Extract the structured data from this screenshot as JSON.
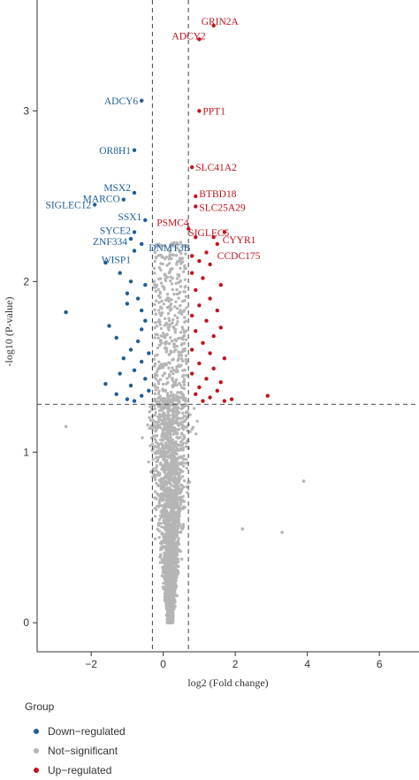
{
  "chart_data": {
    "type": "scatter",
    "title": "",
    "xlabel": "log2 (Fold change)",
    "ylabel": "-log10 (P-value)",
    "xlim": [
      -3.5,
      7.1
    ],
    "ylim": [
      -0.17,
      3.65
    ],
    "xticks": [
      -2,
      0,
      2,
      4,
      6
    ],
    "yticks": [
      0,
      1,
      2,
      3
    ],
    "thresholds": {
      "x_left": -0.3,
      "x_right": 0.7,
      "y": 1.28
    },
    "grid": false,
    "legend_position": "bottom-left",
    "colors": {
      "down": "#1f5d96",
      "ns": "#b5b5b5",
      "up": "#c0141e"
    },
    "series": [
      {
        "name": "Down−regulated",
        "key": "down",
        "points": [
          [
            -0.6,
            3.06
          ],
          [
            -0.8,
            2.77
          ],
          [
            -0.8,
            2.52
          ],
          [
            -1.1,
            2.48
          ],
          [
            -1.9,
            2.45
          ],
          [
            -0.5,
            2.36
          ],
          [
            -0.8,
            2.29
          ],
          [
            -0.9,
            2.25
          ],
          [
            -0.6,
            2.22
          ],
          [
            -0.8,
            2.18
          ],
          [
            -1.6,
            2.11
          ],
          [
            -1.2,
            2.05
          ],
          [
            -0.9,
            2.0
          ],
          [
            -0.5,
            1.98
          ],
          [
            -1.0,
            1.93
          ],
          [
            -0.7,
            1.9
          ],
          [
            -1.0,
            1.87
          ],
          [
            -0.6,
            1.83
          ],
          [
            -2.7,
            1.82
          ],
          [
            -1.5,
            1.74
          ],
          [
            -0.5,
            1.77
          ],
          [
            -0.6,
            1.72
          ],
          [
            -1.3,
            1.67
          ],
          [
            -0.7,
            1.65
          ],
          [
            -0.9,
            1.6
          ],
          [
            -0.4,
            1.58
          ],
          [
            -1.1,
            1.55
          ],
          [
            -0.6,
            1.53
          ],
          [
            -0.8,
            1.48
          ],
          [
            -1.2,
            1.46
          ],
          [
            -0.5,
            1.43
          ],
          [
            -1.6,
            1.4
          ],
          [
            -0.9,
            1.39
          ],
          [
            -0.4,
            1.36
          ],
          [
            -1.3,
            1.34
          ],
          [
            -0.6,
            1.33
          ],
          [
            -1.0,
            1.31
          ],
          [
            -0.8,
            1.3
          ]
        ]
      },
      {
        "name": "Not−significant",
        "key": "ns"
      },
      {
        "name": "Up−regulated",
        "key": "up",
        "points": [
          [
            1.4,
            3.5
          ],
          [
            1.0,
            3.42
          ],
          [
            1.0,
            3.0
          ],
          [
            0.8,
            2.67
          ],
          [
            0.9,
            2.5
          ],
          [
            0.9,
            2.44
          ],
          [
            0.7,
            2.31
          ],
          [
            1.7,
            2.29
          ],
          [
            0.9,
            2.26
          ],
          [
            1.4,
            2.26
          ],
          [
            1.5,
            2.22
          ],
          [
            1.2,
            2.17
          ],
          [
            0.8,
            2.15
          ],
          [
            1.0,
            2.12
          ],
          [
            1.3,
            2.1
          ],
          [
            0.8,
            2.05
          ],
          [
            1.1,
            2.02
          ],
          [
            1.6,
            1.98
          ],
          [
            0.9,
            1.95
          ],
          [
            1.3,
            1.9
          ],
          [
            1.0,
            1.86
          ],
          [
            1.5,
            1.83
          ],
          [
            0.8,
            1.8
          ],
          [
            1.2,
            1.77
          ],
          [
            1.6,
            1.73
          ],
          [
            0.9,
            1.71
          ],
          [
            1.4,
            1.68
          ],
          [
            1.1,
            1.64
          ],
          [
            0.8,
            1.6
          ],
          [
            1.3,
            1.58
          ],
          [
            1.7,
            1.55
          ],
          [
            1.0,
            1.52
          ],
          [
            1.4,
            1.49
          ],
          [
            0.8,
            1.46
          ],
          [
            1.2,
            1.43
          ],
          [
            1.6,
            1.41
          ],
          [
            1.0,
            1.38
          ],
          [
            1.5,
            1.36
          ],
          [
            0.9,
            1.34
          ],
          [
            2.9,
            1.33
          ],
          [
            1.3,
            1.32
          ],
          [
            1.9,
            1.31
          ],
          [
            1.1,
            1.3
          ],
          [
            1.7,
            1.3
          ]
        ]
      }
    ],
    "labels": [
      {
        "text": "GRIN2A",
        "x": 1.4,
        "y": 3.5,
        "group": "up"
      },
      {
        "text": "ADCY2",
        "x": 1.0,
        "y": 3.42,
        "group": "up"
      },
      {
        "text": "PPT1",
        "x": 1.0,
        "y": 3.0,
        "group": "up"
      },
      {
        "text": "SLC41A2",
        "x": 0.8,
        "y": 2.67,
        "group": "up"
      },
      {
        "text": "BTBD18",
        "x": 0.9,
        "y": 2.5,
        "group": "up"
      },
      {
        "text": "SLC25A29",
        "x": 0.9,
        "y": 2.44,
        "group": "up"
      },
      {
        "text": "PSMC4",
        "x": 0.7,
        "y": 2.31,
        "group": "up"
      },
      {
        "text": "SIGLEC5",
        "x": 0.9,
        "y": 2.26,
        "group": "up"
      },
      {
        "text": "CYYR1",
        "x": 1.4,
        "y": 2.26,
        "group": "up"
      },
      {
        "text": "CCDC175",
        "x": 1.5,
        "y": 2.22,
        "group": "up"
      },
      {
        "text": "ADCY6",
        "x": -0.6,
        "y": 3.06,
        "group": "down"
      },
      {
        "text": "OR8H1",
        "x": -0.8,
        "y": 2.77,
        "group": "down"
      },
      {
        "text": "MSX2",
        "x": -0.8,
        "y": 2.52,
        "group": "down"
      },
      {
        "text": "MARCO",
        "x": -1.1,
        "y": 2.48,
        "group": "down"
      },
      {
        "text": "SIGLEC12",
        "x": -1.9,
        "y": 2.45,
        "group": "down"
      },
      {
        "text": "SSX1",
        "x": -0.5,
        "y": 2.36,
        "group": "down"
      },
      {
        "text": "SYCE2",
        "x": -0.8,
        "y": 2.29,
        "group": "down"
      },
      {
        "text": "ZNF334",
        "x": -0.9,
        "y": 2.25,
        "group": "down"
      },
      {
        "text": "DNMT3B",
        "x": -0.6,
        "y": 2.22,
        "group": "down"
      },
      {
        "text": "WISP1",
        "x": -0.8,
        "y": 2.18,
        "group": "down"
      }
    ],
    "ns_outliers": [
      [
        3.9,
        0.83
      ],
      [
        3.3,
        0.53
      ],
      [
        -2.7,
        1.15
      ],
      [
        2.2,
        0.55
      ]
    ]
  },
  "legend": {
    "title": "Group",
    "items": [
      {
        "label": "Down−regulated",
        "key": "down"
      },
      {
        "label": "Not−significant",
        "key": "ns"
      },
      {
        "label": "Up−regulated",
        "key": "up"
      }
    ]
  }
}
